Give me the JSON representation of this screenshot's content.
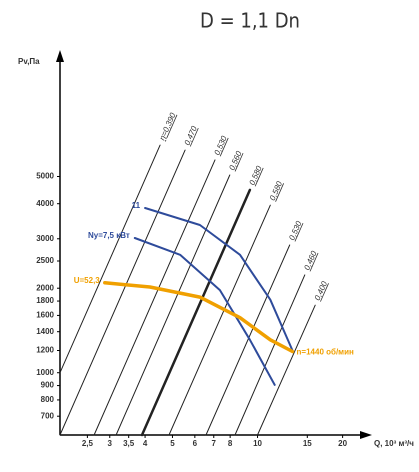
{
  "chart_data": {
    "type": "line",
    "title": "D = 1,1 Dn",
    "y_label": "Pv,Па",
    "x_label": "Q, 10³ м³/ч",
    "xlog": true,
    "ylog": true,
    "xlim": [
      2,
      25
    ],
    "ylim": [
      600,
      13000
    ],
    "xticks": [
      {
        "value": 2.5,
        "label": "2,5"
      },
      3,
      {
        "value": 3.5,
        "label": "3,5"
      },
      4,
      5,
      6,
      7,
      8,
      10,
      15,
      20
    ],
    "yticks": [
      700,
      800,
      900,
      1000,
      1200,
      1400,
      1600,
      1800,
      2000,
      2500,
      3000,
      4000,
      5000
    ],
    "efficiency_lines": [
      {
        "name": "η=0,390",
        "color": "#222222",
        "width": 1,
        "x": [
          2.0,
          4.52
        ],
        "values": [
          1000,
          6470
        ]
      },
      {
        "name": "0,470",
        "color": "#222222",
        "width": 1,
        "x": [
          2.0,
          5.54
        ],
        "values": [
          600,
          6210
        ]
      },
      {
        "name": "0,530",
        "color": "#222222",
        "width": 1,
        "x": [
          2.64,
          7.07
        ],
        "values": [
          600,
          5730
        ]
      },
      {
        "name": "0,560",
        "color": "#222222",
        "width": 1,
        "x": [
          3.16,
          7.98
        ],
        "values": [
          600,
          5060
        ]
      },
      {
        "name": "0,580",
        "color": "#222222",
        "width": 2.5,
        "x": [
          3.9,
          9.4
        ],
        "values": [
          600,
          4480
        ]
      },
      {
        "name": "0,580",
        "color": "#222222",
        "width": 1,
        "x": [
          4.86,
          11.1
        ],
        "values": [
          600,
          3950
        ]
      },
      {
        "name": "0,530",
        "color": "#222222",
        "width": 1,
        "x": [
          6.57,
          13.0
        ],
        "values": [
          600,
          2850
        ]
      },
      {
        "name": "0,460",
        "color": "#222222",
        "width": 1,
        "x": [
          8.32,
          14.7
        ],
        "values": [
          600,
          2230
        ]
      },
      {
        "name": "0,400",
        "color": "#222222",
        "width": 1,
        "x": [
          10.0,
          16.0
        ],
        "values": [
          600,
          1740
        ]
      }
    ],
    "series": [
      {
        "name": "11",
        "color": "#2e4b9b",
        "width": 2,
        "x": [
          4.0,
          6.25,
          8.67,
          11.1,
          13.3
        ],
        "values": [
          3860,
          3360,
          2630,
          1820,
          1200
        ]
      },
      {
        "name": "Ny=7,5 кВт",
        "color": "#2e4b9b",
        "width": 2,
        "x": [
          3.68,
          5.32,
          7.36,
          9.4,
          11.5
        ],
        "values": [
          3020,
          2630,
          1970,
          1310,
          905
        ]
      },
      {
        "name": "U=52,3",
        "color": "#f0a000",
        "width": 3.5,
        "x": [
          2.88,
          4.16,
          6.25,
          8.67,
          11.1,
          13.3
        ],
        "values": [
          2090,
          2020,
          1860,
          1570,
          1310,
          1190
        ]
      }
    ],
    "end_annotation": "n=1440 об/мин"
  }
}
